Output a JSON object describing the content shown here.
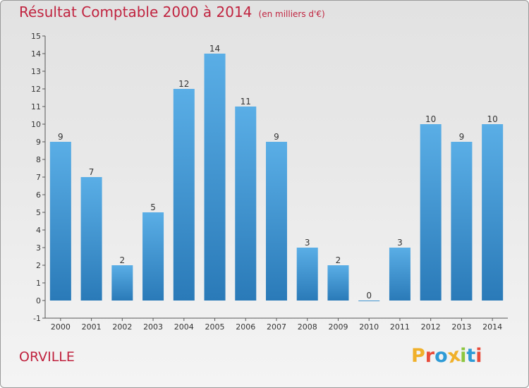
{
  "header": {
    "title": "Résultat Comptable 2000 à 2014",
    "unit": "(en milliers d'€)"
  },
  "footer": {
    "commune": "ORVILLE",
    "logo_text": "Proxiti"
  },
  "colors": {
    "title": "#c0233f",
    "bar_top": "#5aaee6",
    "bar_bottom": "#2a7ab8",
    "logo": [
      "#f0b02a",
      "#e84b3a",
      "#2e9bd6",
      "#f0b02a",
      "#8cc63f",
      "#2e9bd6",
      "#e84b3a"
    ]
  },
  "chart_data": {
    "type": "bar",
    "title": "Résultat Comptable 2000 à 2014 (en milliers d'€)",
    "xlabel": "",
    "ylabel": "",
    "categories": [
      "2000",
      "2001",
      "2002",
      "2003",
      "2004",
      "2005",
      "2006",
      "2007",
      "2008",
      "2009",
      "2010",
      "2011",
      "2012",
      "2013",
      "2014"
    ],
    "values": [
      9,
      7,
      2,
      5,
      12,
      14,
      11,
      9,
      3,
      2,
      0,
      3,
      10,
      9,
      10
    ],
    "ylim": [
      -1,
      15
    ],
    "yticks": [
      "-1",
      "0",
      "1",
      "2",
      "3",
      "4",
      "5",
      "6",
      "7",
      "8",
      "9",
      "10",
      "11",
      "12",
      "13",
      "14",
      "15"
    ],
    "grid": false,
    "legend": "none"
  }
}
